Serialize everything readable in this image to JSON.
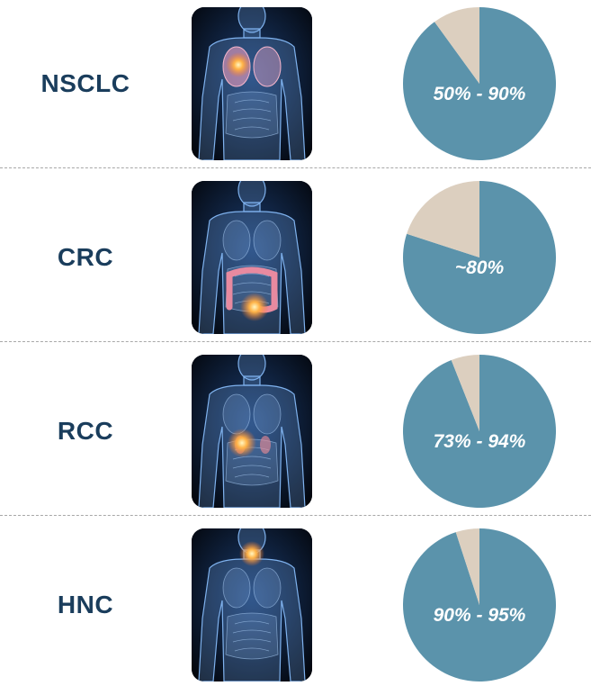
{
  "colors": {
    "label": "#1a3d5c",
    "pie_main": "#5b93ab",
    "pie_rest": "#dccfbf",
    "pie_text": "#ffffff",
    "divider": "#a8a8a8"
  },
  "rows": [
    {
      "label": "NSCLC",
      "range_text": "50% - 90%",
      "highlight_organ": "lung",
      "icon": "human-body-lung-tumor-image"
    },
    {
      "label": "CRC",
      "range_text": "~80%",
      "highlight_organ": "colon",
      "icon": "human-body-colon-tumor-image"
    },
    {
      "label": "RCC",
      "range_text": "73% - 94%",
      "highlight_organ": "kidney",
      "icon": "human-body-kidney-tumor-image"
    },
    {
      "label": "HNC",
      "range_text": "90% - 95%",
      "highlight_organ": "throat",
      "icon": "human-body-throat-tumor-image"
    }
  ],
  "chart_data": [
    {
      "type": "pie",
      "category": "NSCLC",
      "label": "50% - 90%",
      "values": [
        90,
        10
      ]
    },
    {
      "type": "pie",
      "category": "CRC",
      "label": "~80%",
      "values": [
        80,
        20
      ]
    },
    {
      "type": "pie",
      "category": "RCC",
      "label": "73% - 94%",
      "values": [
        94,
        6
      ]
    },
    {
      "type": "pie",
      "category": "HNC",
      "label": "90% - 95%",
      "values": [
        95,
        5
      ]
    }
  ]
}
